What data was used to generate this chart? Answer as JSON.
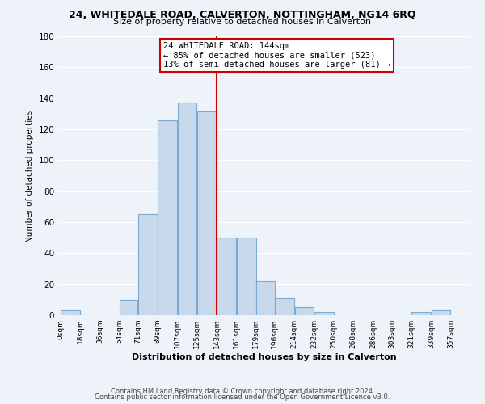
{
  "title": "24, WHITEDALE ROAD, CALVERTON, NOTTINGHAM, NG14 6RQ",
  "subtitle": "Size of property relative to detached houses in Calverton",
  "xlabel": "Distribution of detached houses by size in Calverton",
  "ylabel": "Number of detached properties",
  "footer_line1": "Contains HM Land Registry data © Crown copyright and database right 2024.",
  "footer_line2": "Contains public sector information licensed under the Open Government Licence v3.0.",
  "bar_left_edges": [
    0,
    18,
    36,
    54,
    71,
    89,
    107,
    125,
    143,
    161,
    179,
    196,
    214,
    232,
    250,
    268,
    286,
    303,
    321,
    339
  ],
  "bar_heights": [
    3,
    0,
    0,
    10,
    65,
    126,
    137,
    132,
    50,
    50,
    22,
    11,
    5,
    2,
    0,
    0,
    0,
    0,
    2,
    3
  ],
  "bar_widths": [
    18,
    18,
    18,
    17,
    18,
    18,
    18,
    18,
    18,
    18,
    17,
    18,
    18,
    18,
    18,
    18,
    17,
    18,
    18,
    18
  ],
  "tick_labels": [
    "0sqm",
    "18sqm",
    "36sqm",
    "54sqm",
    "71sqm",
    "89sqm",
    "107sqm",
    "125sqm",
    "143sqm",
    "161sqm",
    "179sqm",
    "196sqm",
    "214sqm",
    "232sqm",
    "250sqm",
    "268sqm",
    "286sqm",
    "303sqm",
    "321sqm",
    "339sqm",
    "357sqm"
  ],
  "tick_positions": [
    0,
    18,
    36,
    54,
    71,
    89,
    107,
    125,
    143,
    161,
    179,
    196,
    214,
    232,
    250,
    268,
    286,
    303,
    321,
    339,
    357
  ],
  "bar_color": "#c9d9ec",
  "bar_edge_color": "#7aaad0",
  "vline_x": 143,
  "vline_color": "#cc0000",
  "annotation_title": "24 WHITEDALE ROAD: 144sqm",
  "annotation_line1": "← 85% of detached houses are smaller (523)",
  "annotation_line2": "13% of semi-detached houses are larger (81) →",
  "annotation_box_color": "#ffffff",
  "annotation_box_edge": "#cc0000",
  "ylim": [
    0,
    180
  ],
  "yticks": [
    0,
    20,
    40,
    60,
    80,
    100,
    120,
    140,
    160,
    180
  ],
  "background_color": "#eef2f9"
}
